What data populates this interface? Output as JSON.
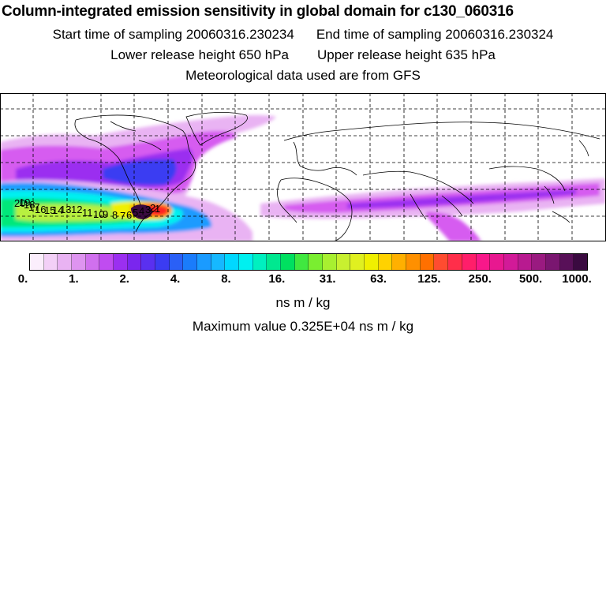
{
  "header": {
    "title": "Column-integrated emission sensitivity in global domain for c130_060316",
    "start_sampling": "Start time of sampling 20060316.230234",
    "end_sampling": "End time of sampling 20060316.230324",
    "lower_release": "Lower release height  650 hPa",
    "upper_release": "Upper release height  635 hPa",
    "met_data": "Meteorological data used are from GFS"
  },
  "map": {
    "trajectory_labels": [
      "20",
      "19",
      "18",
      "17",
      "16",
      "15",
      "14",
      "13",
      "12",
      "11",
      "10",
      "9",
      "8",
      "7",
      "6",
      "5",
      "4",
      "3",
      "2",
      "1"
    ],
    "palette": {
      "white": "#ffffff",
      "lilac": "#e9b3f3",
      "magenta": "#d65cf0",
      "violet": "#9b2ff0",
      "blue": "#3b3cf2",
      "azure": "#1a9bff",
      "cyan": "#00f0f0",
      "green": "#00e87a",
      "lime": "#b8f040",
      "yellow": "#f0f000",
      "orange": "#ffa000",
      "red": "#ff2020",
      "dark": "#3a0a40"
    }
  },
  "colorbar": {
    "colors": [
      "#fbeefc",
      "#f3d0f7",
      "#e9b3f3",
      "#de94f0",
      "#d070ee",
      "#c04cf0",
      "#9b2ff0",
      "#7a26ee",
      "#5a30f0",
      "#3b3cf2",
      "#2a60f6",
      "#1a7cfb",
      "#1a9bff",
      "#16b8ff",
      "#00d8ff",
      "#00f0f0",
      "#00f0c0",
      "#00e890",
      "#00e060",
      "#40e840",
      "#7aee30",
      "#a8f030",
      "#c8f030",
      "#e0f020",
      "#f0f000",
      "#ffd200",
      "#ffb000",
      "#ff9000",
      "#ff7000",
      "#ff4c30",
      "#ff2e4a",
      "#ff1e6a",
      "#f8188a",
      "#e81890",
      "#d21a98",
      "#b81a90",
      "#9a1a80",
      "#7a1670",
      "#581058",
      "#3a0a40"
    ],
    "tick_labels": [
      "0.",
      "1.",
      "2.",
      "4.",
      "8.",
      "16.",
      "31.",
      "63.",
      "125.",
      "250.",
      "500.",
      "1000."
    ],
    "unit": "ns m / kg"
  },
  "footer": {
    "maximum_value": "Maximum value  0.325E+04 ns m / kg"
  }
}
